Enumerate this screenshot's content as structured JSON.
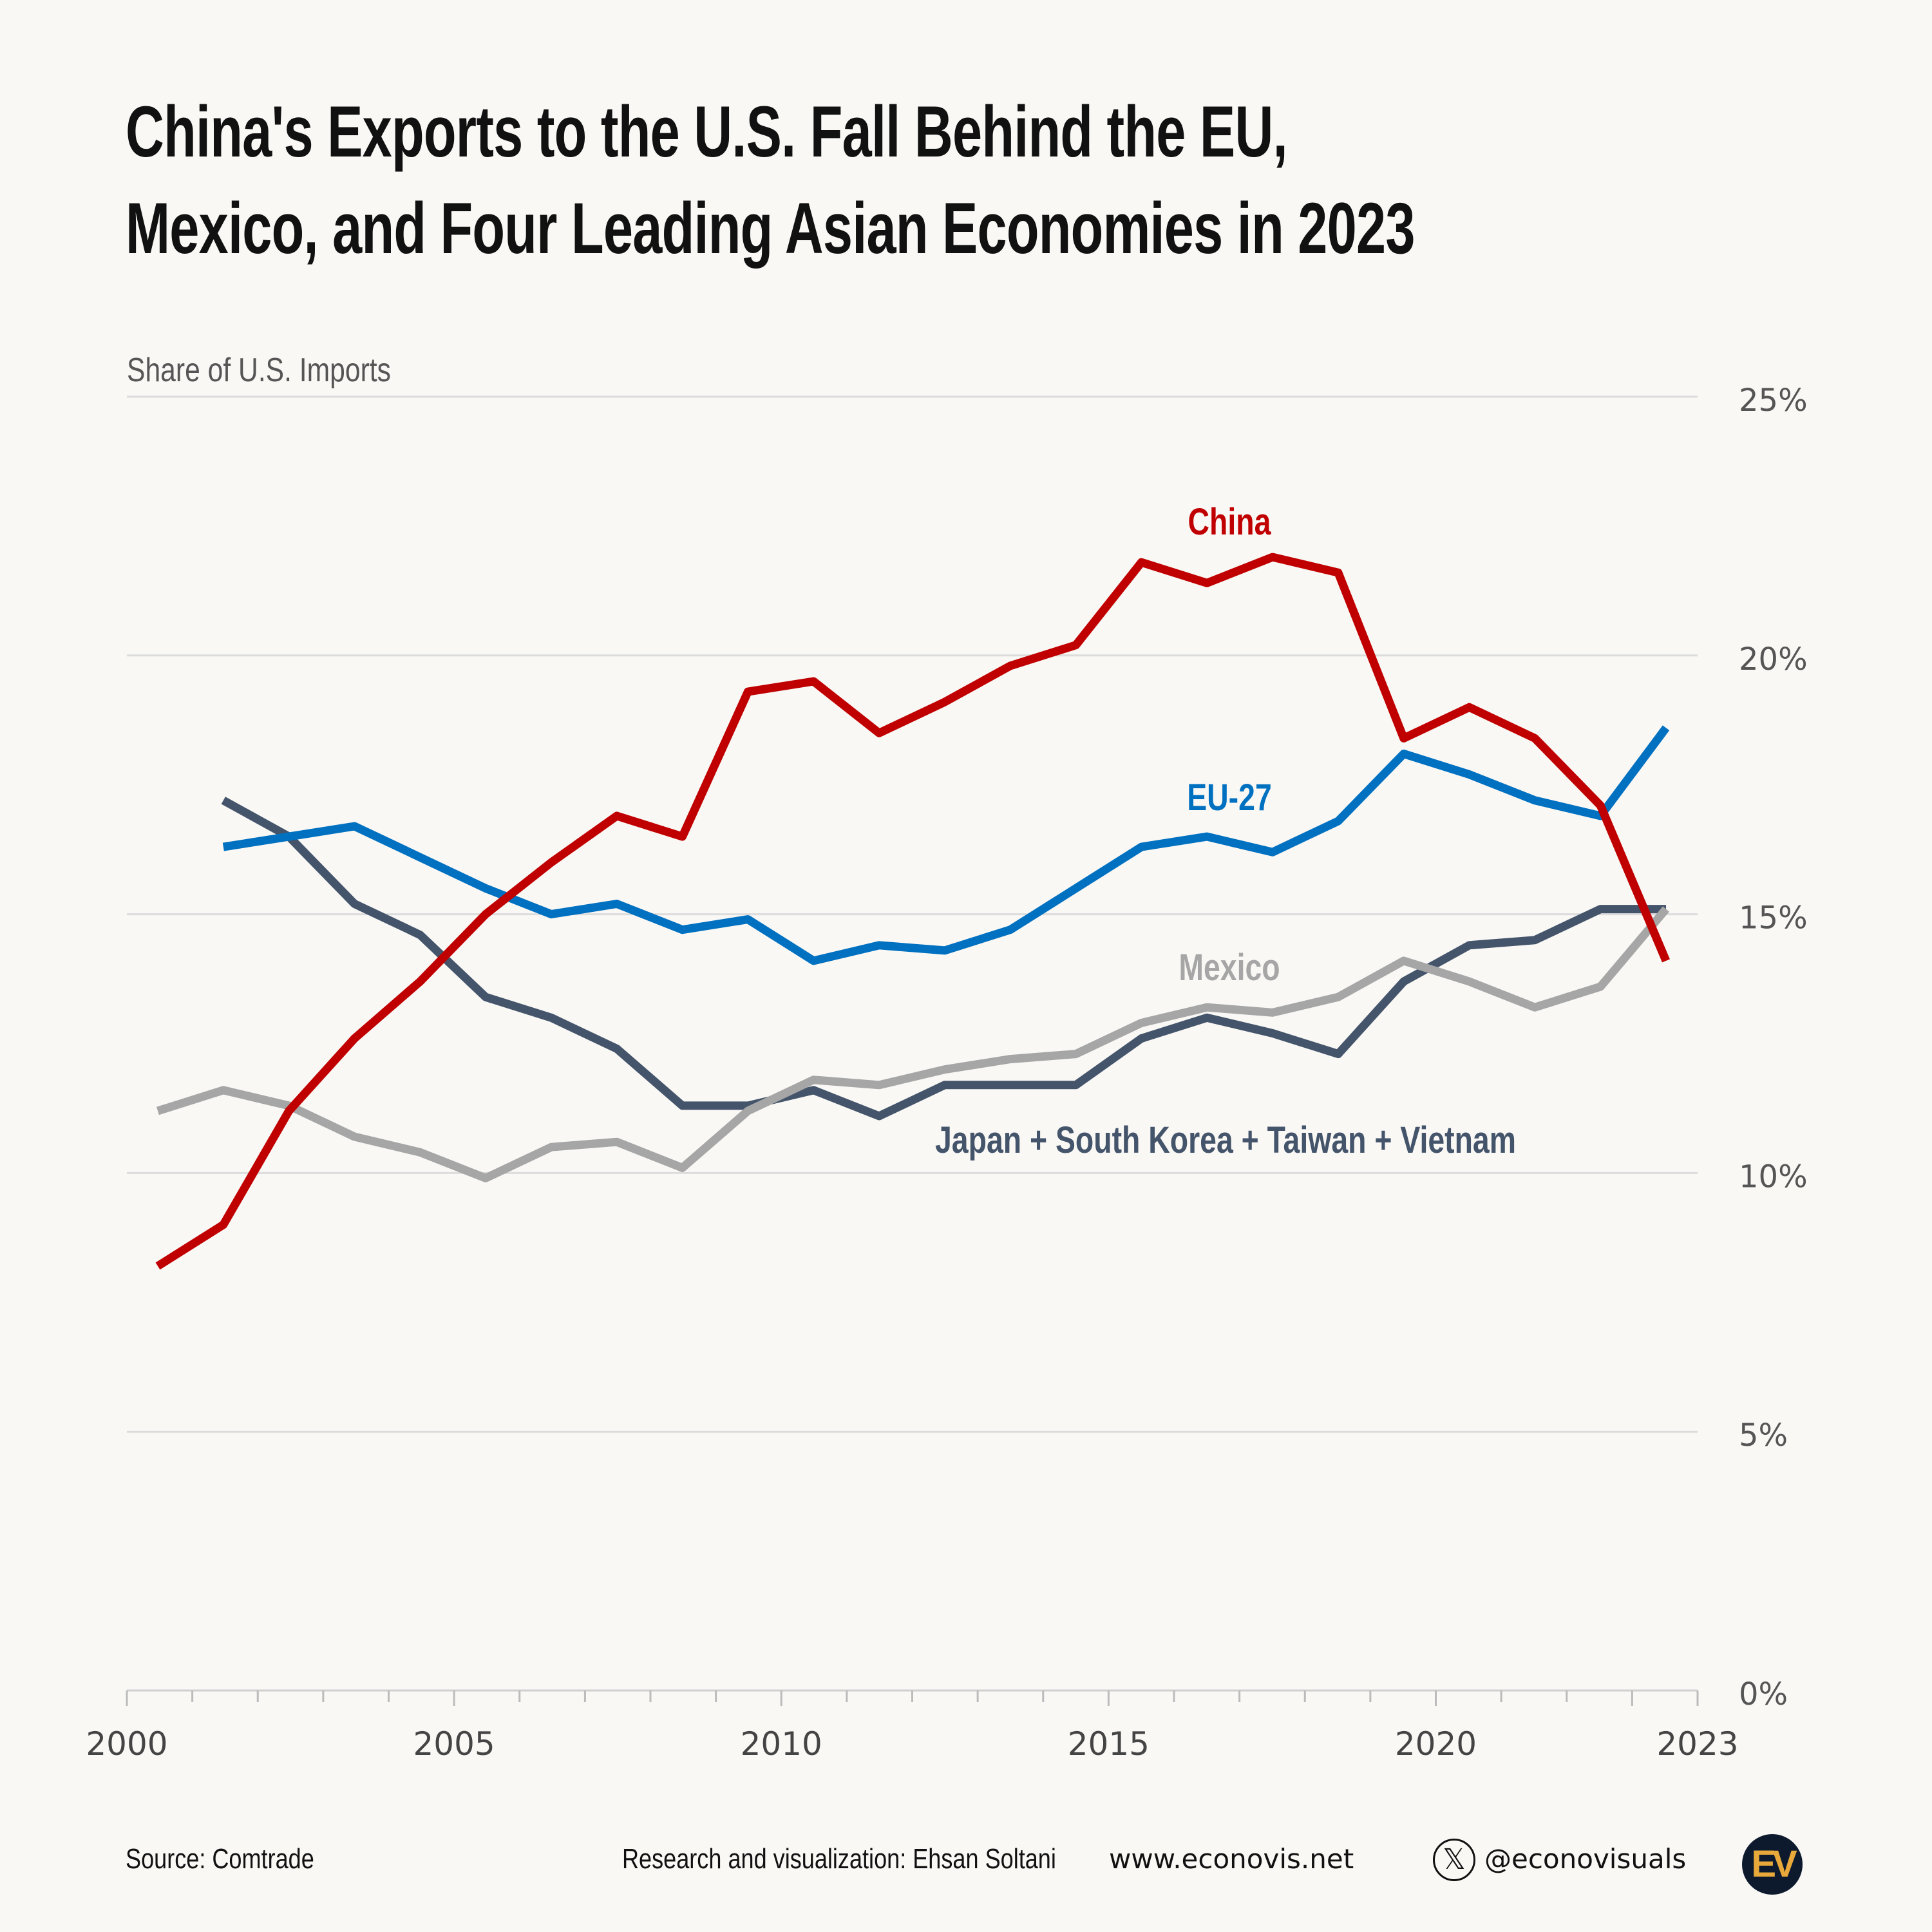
{
  "title_lines": [
    "China's Exports to the U.S. Fall Behind the EU,",
    "Mexico, and Four Leading Asian Economies in 2023"
  ],
  "footer": {
    "source": "Source: Comtrade",
    "credit": "Research and visualization: Ehsan Soltani",
    "website": "www.econovis.net",
    "handle": "@econovisuals",
    "logo_text": "EV",
    "x_icon": "x-twitter-icon"
  },
  "chart_data": {
    "type": "line",
    "title": "China's Exports to the U.S. Fall Behind the EU, Mexico, and Four Leading Asian Economies in 2023",
    "ylabel": "Share of U.S. Imports",
    "xlabel": "",
    "ylim": [
      0,
      25
    ],
    "xlim": [
      2000,
      2023
    ],
    "yticks": [
      "0%",
      "5%",
      "10%",
      "15%",
      "20%",
      "25%"
    ],
    "xticks": [
      "2000",
      "2005",
      "2010",
      "2015",
      "2020",
      "2023"
    ],
    "grid": true,
    "y_axis_side": "right",
    "series": [
      {
        "name": "China",
        "color": "#c00000",
        "x": [
          2000,
          2001,
          2002,
          2003,
          2004,
          2005,
          2006,
          2007,
          2008,
          2009,
          2010,
          2011,
          2012,
          2013,
          2014,
          2015,
          2016,
          2017,
          2018,
          2019,
          2020,
          2021,
          2022,
          2023
        ],
        "values": [
          8.2,
          9.0,
          11.2,
          12.6,
          13.7,
          15.0,
          16.0,
          16.9,
          16.5,
          19.3,
          19.5,
          18.5,
          19.1,
          19.8,
          20.2,
          21.8,
          21.4,
          21.9,
          21.6,
          18.4,
          19.0,
          18.4,
          17.1,
          14.1
        ]
      },
      {
        "name": "EU-27",
        "color": "#0070c0",
        "x": [
          2001,
          2002,
          2003,
          2004,
          2005,
          2006,
          2007,
          2008,
          2009,
          2010,
          2011,
          2012,
          2013,
          2014,
          2015,
          2016,
          2017,
          2018,
          2019,
          2020,
          2021,
          2022,
          2023
        ],
        "values": [
          16.3,
          16.5,
          16.7,
          16.1,
          15.5,
          15.0,
          15.2,
          14.7,
          14.9,
          14.1,
          14.4,
          14.3,
          14.7,
          15.5,
          16.3,
          16.5,
          16.2,
          16.8,
          18.1,
          17.7,
          17.2,
          16.9,
          18.6
        ]
      },
      {
        "name": "Mexico",
        "color": "#a6a6a6",
        "x": [
          2000,
          2001,
          2002,
          2003,
          2004,
          2005,
          2006,
          2007,
          2008,
          2009,
          2010,
          2011,
          2012,
          2013,
          2014,
          2015,
          2016,
          2017,
          2018,
          2019,
          2020,
          2021,
          2022,
          2023
        ],
        "values": [
          11.2,
          11.6,
          11.3,
          10.7,
          10.4,
          9.9,
          10.5,
          10.6,
          10.1,
          11.2,
          11.8,
          11.7,
          12.0,
          12.2,
          12.3,
          12.9,
          13.2,
          13.1,
          13.4,
          14.1,
          13.7,
          13.2,
          13.6,
          15.1
        ]
      },
      {
        "name": "Japan + South Korea + Taiwan + Vietnam",
        "color": "#44546a",
        "x": [
          2001,
          2002,
          2003,
          2004,
          2005,
          2006,
          2007,
          2008,
          2009,
          2010,
          2011,
          2012,
          2013,
          2014,
          2015,
          2016,
          2017,
          2018,
          2019,
          2020,
          2021,
          2022,
          2023
        ],
        "values": [
          17.2,
          16.5,
          15.2,
          14.6,
          13.4,
          13.0,
          12.4,
          11.3,
          11.3,
          11.6,
          11.1,
          11.7,
          11.7,
          11.7,
          12.6,
          13.0,
          12.7,
          12.3,
          13.7,
          14.4,
          14.5,
          15.1,
          15.1
        ]
      }
    ]
  }
}
